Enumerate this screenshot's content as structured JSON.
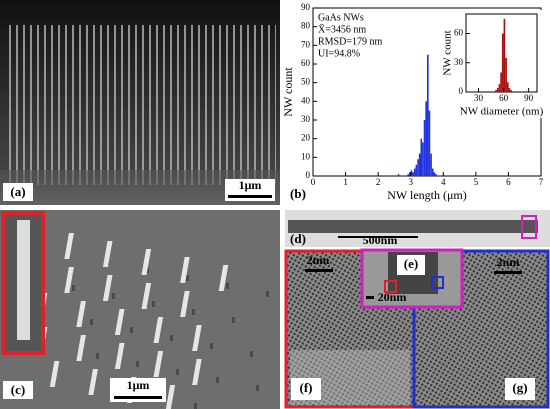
{
  "panels": {
    "a": {
      "label": "(a)",
      "scale": "1μm"
    },
    "b": {
      "label": "(b)"
    },
    "c": {
      "label": "(c)",
      "scale": "1μm"
    },
    "d": {
      "label": "(d)",
      "scale": "500nm"
    },
    "e": {
      "label": "(e)",
      "scale": "20nm"
    },
    "f": {
      "label": "(f)",
      "scale": "2nm"
    },
    "g": {
      "label": "(g)",
      "scale": "2nm"
    }
  },
  "chart_data": [
    {
      "type": "histogram",
      "xlabel": "NW length (μm)",
      "ylabel": "NW count",
      "annotations": [
        "GaAs NWs",
        "X̄=3456 nm",
        "RMSD=179 nm",
        "UI=94.8%"
      ],
      "bins": [
        2.6,
        2.65,
        2.7,
        2.75,
        2.8,
        2.85,
        2.9,
        2.95,
        3.0,
        3.05,
        3.1,
        3.15,
        3.2,
        3.25,
        3.3,
        3.35,
        3.4,
        3.45,
        3.5,
        3.55,
        3.6,
        3.65,
        3.7,
        3.75,
        3.8
      ],
      "values": [
        1,
        0,
        0,
        0,
        0,
        0,
        1,
        2,
        3,
        2,
        4,
        6,
        9,
        12,
        20,
        18,
        30,
        40,
        65,
        35,
        12,
        4,
        2,
        1
      ],
      "color": "#2233dd",
      "xlim": [
        0,
        7
      ],
      "xticks": [
        0,
        1,
        2,
        3,
        4,
        5,
        6,
        7
      ],
      "ylim": [
        0,
        90
      ],
      "yticks": [
        0,
        10,
        20,
        30,
        40,
        50,
        60,
        70,
        80,
        90
      ]
    },
    {
      "type": "histogram",
      "xlabel": "NW diameter (nm)",
      "ylabel": "NW count",
      "bins": [
        50,
        52,
        54,
        56,
        58,
        60,
        62,
        64,
        66,
        68,
        70
      ],
      "values": [
        2,
        4,
        8,
        20,
        60,
        75,
        35,
        10,
        4,
        2
      ],
      "color": "#aa1111",
      "xlim": [
        15,
        100
      ],
      "xticks": [
        30,
        60,
        90
      ],
      "ylim": [
        0,
        80
      ],
      "yticks": [
        0,
        30,
        60
      ]
    }
  ]
}
